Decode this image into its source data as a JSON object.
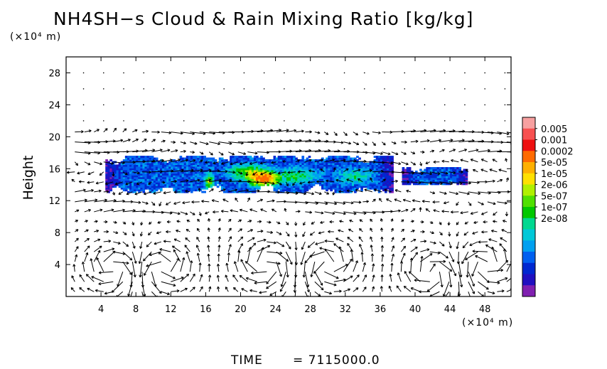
{
  "chart_data": {
    "type": "heatmap",
    "title": "NH4SH−s Cloud & Rain Mixing Ratio [kg/kg]",
    "xlabel": "",
    "x_unit": "(×10⁴ m)",
    "ylabel": "Height",
    "y_unit": "(×10⁴ m)",
    "xlim": [
      0,
      51
    ],
    "ylim": [
      0,
      30
    ],
    "x_ticks": [
      4,
      8,
      12,
      16,
      20,
      24,
      28,
      32,
      36,
      40,
      44,
      48
    ],
    "x_tick_labels": [
      "4",
      "8",
      "12",
      "16",
      "20",
      "24",
      "28",
      "32",
      "36",
      "40",
      "44",
      "48"
    ],
    "y_ticks": [
      4,
      8,
      12,
      16,
      20,
      24,
      28
    ],
    "y_tick_labels": [
      "4",
      "8",
      "12",
      "16",
      "20",
      "24",
      "28"
    ],
    "colorbar": {
      "labels": [
        "0.005",
        "0.001",
        "0.0002",
        "5e-05",
        "1e-05",
        "2e-06",
        "5e-07",
        "1e-07",
        "2e-08"
      ],
      "colors": [
        "#f7a0a0",
        "#f75050",
        "#ee1010",
        "#ff6a00",
        "#ffb000",
        "#ffe000",
        "#b0f000",
        "#50e000",
        "#00c800",
        "#00d890",
        "#00c8d8",
        "#00a0f0",
        "#0060f0",
        "#0028d0",
        "#2010c0",
        "#8020b0"
      ]
    },
    "cloud_regions": [
      {
        "x_range": [
          4.5,
          37.5
        ],
        "y_range": [
          13.0,
          17.5
        ]
      },
      {
        "x_range": [
          38.5,
          46.0
        ],
        "y_range": [
          14.0,
          16.0
        ]
      }
    ],
    "wind_vectors": "shown"
  },
  "footer": {
    "time_label": "TIME",
    "time_value": "=  7115000.0"
  }
}
